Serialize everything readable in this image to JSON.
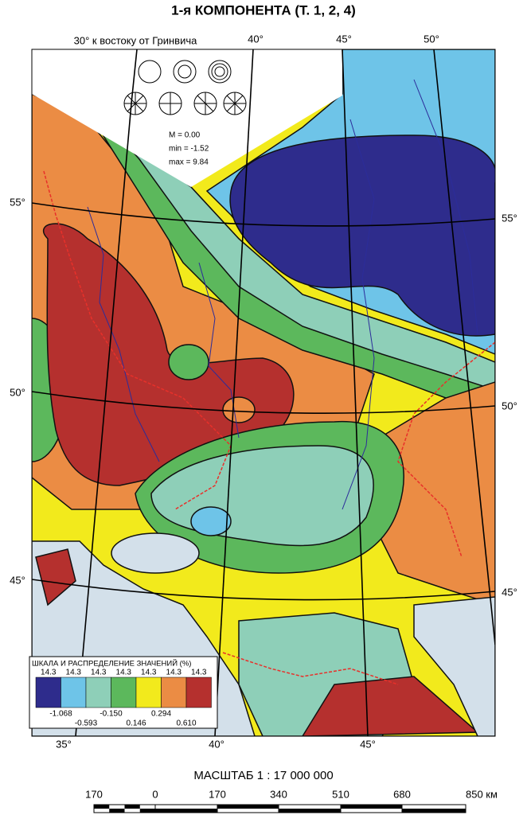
{
  "title": "1-я КОМПОНЕНТА (Т. 1, 2, 4)",
  "map": {
    "meridian_caption": "30° к востоку от Гринвича",
    "top_labels": [
      "40°",
      "45°",
      "50°"
    ],
    "left_labels": [
      "55°",
      "50°",
      "45°"
    ],
    "right_labels": [
      "55°",
      "50°",
      "45°"
    ],
    "bottom_labels": [
      "35°",
      "40°",
      "45°"
    ],
    "stats": [
      "M = 0.00",
      "min = -1.52",
      "max = 9.84"
    ]
  },
  "legend": {
    "title": "ШКАЛА И РАСПРЕДЕЛЕНИЕ ЗНАЧЕНИЙ (%)",
    "classes": [
      {
        "share": "14.3",
        "color": "#2e2c8c"
      },
      {
        "share": "14.3",
        "color": "#6ec4e8"
      },
      {
        "share": "14.3",
        "color": "#8ecfb8"
      },
      {
        "share": "14.3",
        "color": "#5cb85c"
      },
      {
        "share": "14.3",
        "color": "#f2ea1c"
      },
      {
        "share": "14.3",
        "color": "#eb8c44"
      },
      {
        "share": "14.3",
        "color": "#b5302e"
      }
    ],
    "breaks": [
      "-1.068",
      "-0.593",
      "-0.150",
      "0.146",
      "0.294",
      "0.610"
    ]
  },
  "scale": {
    "title": "МАСШТАБ 1 : 17 000 000",
    "labels": [
      "170",
      "0",
      "170",
      "340",
      "510",
      "680",
      "850 км"
    ]
  }
}
